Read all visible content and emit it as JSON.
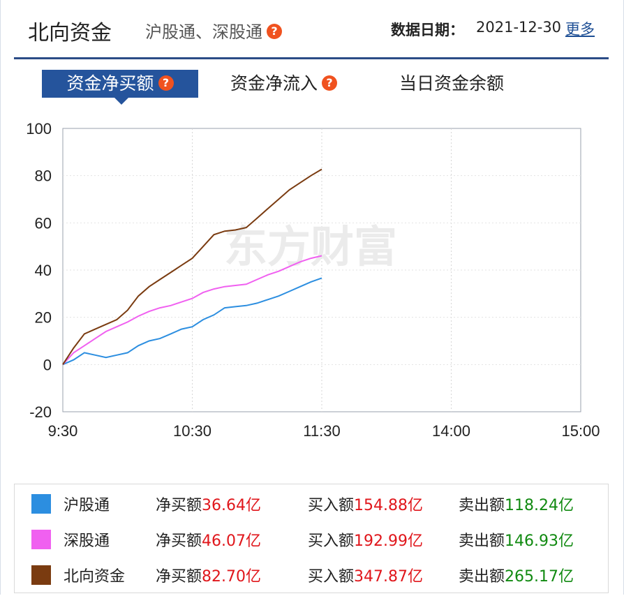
{
  "header": {
    "title": "北向资金",
    "subtitle": "沪股通、深股通",
    "help": "?",
    "date_label": "数据日期：",
    "date_value": "2021-12-30",
    "more_link": "更多"
  },
  "tabs": [
    {
      "label": "资金净买额",
      "active": true
    },
    {
      "label": "资金净流入",
      "active": false
    },
    {
      "label": "当日资金余额",
      "active": false
    }
  ],
  "watermark": "东方财富",
  "colors": {
    "accent": "#25549c",
    "up": "#e0161b",
    "down": "#118a11"
  },
  "chart_data": {
    "type": "line",
    "ylim": [
      -20,
      100
    ],
    "yticks": [
      "100",
      "80",
      "60",
      "40",
      "20",
      "0",
      "-20"
    ],
    "xtick_labels": [
      "9:30",
      "10:30",
      "11:30",
      "14:00",
      "15:00"
    ],
    "grid": true,
    "series": [
      {
        "name": "沪股通",
        "color": "#2c8ee0",
        "x": [
          "9:30",
          "9:35",
          "9:40",
          "9:45",
          "9:50",
          "9:55",
          "10:00",
          "10:05",
          "10:10",
          "10:15",
          "10:20",
          "10:25",
          "10:30",
          "10:35",
          "10:40",
          "10:45",
          "10:50",
          "10:55",
          "11:00",
          "11:05",
          "11:10",
          "11:15",
          "11:20",
          "11:25",
          "11:30"
        ],
        "values": [
          0,
          2,
          5,
          4,
          3,
          4,
          5,
          8,
          10,
          11,
          13,
          15,
          16,
          19,
          21,
          24,
          24.5,
          25,
          26,
          27.5,
          29,
          31,
          33,
          35,
          36.64
        ]
      },
      {
        "name": "深股通",
        "color": "#f060f0",
        "x": [
          "9:30",
          "9:35",
          "9:40",
          "9:45",
          "9:50",
          "9:55",
          "10:00",
          "10:05",
          "10:10",
          "10:15",
          "10:20",
          "10:25",
          "10:30",
          "10:35",
          "10:40",
          "10:45",
          "10:50",
          "10:55",
          "11:00",
          "11:05",
          "11:10",
          "11:15",
          "11:20",
          "11:25",
          "11:30"
        ],
        "values": [
          0,
          5,
          8,
          11,
          14,
          16,
          18,
          20.5,
          22.5,
          24,
          25,
          26.5,
          28,
          30.5,
          32,
          33,
          33.5,
          34,
          36,
          38,
          39.5,
          41.5,
          43.5,
          45,
          46.07
        ]
      },
      {
        "name": "北向资金",
        "color": "#7a3b10",
        "x": [
          "9:30",
          "9:35",
          "9:40",
          "9:45",
          "9:50",
          "9:55",
          "10:00",
          "10:05",
          "10:10",
          "10:15",
          "10:20",
          "10:25",
          "10:30",
          "10:35",
          "10:40",
          "10:45",
          "10:50",
          "10:55",
          "11:00",
          "11:05",
          "11:10",
          "11:15",
          "11:20",
          "11:25",
          "11:30"
        ],
        "values": [
          0,
          7,
          13,
          15,
          17,
          19,
          23,
          29,
          33,
          36,
          39,
          42,
          45,
          50,
          55,
          56.5,
          57,
          58,
          62,
          66,
          70,
          74,
          77,
          80,
          82.7
        ]
      }
    ]
  },
  "legend": [
    {
      "name": "沪股通",
      "color": "#2c8ee0",
      "net_label": "净买额",
      "net": "36.64亿",
      "buy_label": "买入额",
      "buy": "154.88亿",
      "sell_label": "卖出额",
      "sell": "118.24亿"
    },
    {
      "name": "深股通",
      "color": "#f060f0",
      "net_label": "净买额",
      "net": "46.07亿",
      "buy_label": "买入额",
      "buy": "192.99亿",
      "sell_label": "卖出额",
      "sell": "146.93亿"
    },
    {
      "name": "北向资金",
      "color": "#7a3b10",
      "net_label": "净买额",
      "net": "82.70亿",
      "buy_label": "买入额",
      "buy": "347.87亿",
      "sell_label": "卖出额",
      "sell": "265.17亿"
    }
  ]
}
